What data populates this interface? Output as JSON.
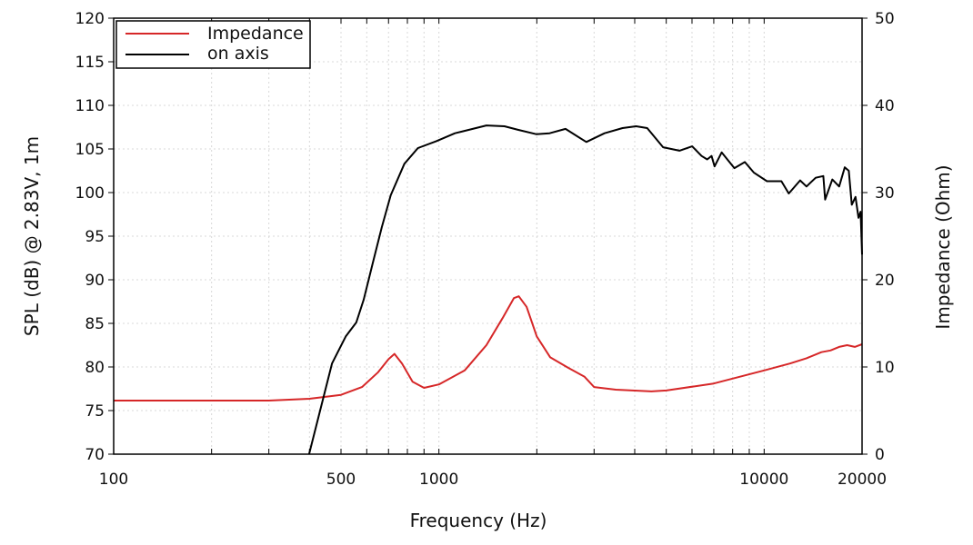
{
  "chart_data": {
    "type": "line",
    "title": "",
    "xlabel": "Frequency (Hz)",
    "ylabel": "SPL (dB) @ 2.83V, 1m",
    "y2label": "Impedance (Ohm)",
    "xscale": "log",
    "xlim": [
      100,
      20000
    ],
    "ylim": [
      70,
      120
    ],
    "y2lim": [
      0,
      50
    ],
    "xticks": [
      100,
      500,
      1000,
      10000,
      20000
    ],
    "xtick_labels": [
      "100",
      "500",
      "1000",
      "10000",
      "20000"
    ],
    "yticks": [
      70,
      75,
      80,
      85,
      90,
      95,
      100,
      105,
      110,
      115,
      120
    ],
    "ytick_labels": [
      "70",
      "75",
      "80",
      "85",
      "90",
      "95",
      "100",
      "105",
      "110",
      "115",
      "120"
    ],
    "y2ticks": [
      0,
      10,
      20,
      30,
      40,
      50
    ],
    "y2tick_labels": [
      "0",
      "10",
      "20",
      "30",
      "40",
      "50"
    ],
    "grid": true,
    "legend": {
      "placement": "top-left",
      "entries": [
        "Impedance",
        "on axis"
      ]
    },
    "series": [
      {
        "name": "Impedance",
        "axis": "right",
        "color": "#d62728",
        "x": [
          100,
          300,
          400,
          500,
          580,
          650,
          700,
          730,
          770,
          830,
          900,
          1000,
          1200,
          1400,
          1570,
          1700,
          1760,
          1860,
          2000,
          2200,
          2500,
          2800,
          3000,
          3500,
          4500,
          5000,
          7000,
          10000,
          12000,
          13500,
          15000,
          16000,
          17000,
          18000,
          19000,
          20000
        ],
        "y": [
          6.15,
          6.15,
          6.35,
          6.8,
          7.7,
          9.4,
          10.9,
          11.5,
          10.4,
          8.3,
          7.6,
          8.0,
          9.6,
          12.5,
          15.6,
          17.9,
          18.1,
          16.9,
          13.5,
          11.1,
          9.9,
          8.9,
          7.7,
          7.4,
          7.2,
          7.3,
          8.1,
          9.6,
          10.4,
          11.0,
          11.7,
          11.9,
          12.3,
          12.5,
          12.3,
          12.6
        ]
      },
      {
        "name": "on axis",
        "axis": "left",
        "color": "#000000",
        "x": [
          399,
          469,
          517,
          557,
          587,
          626,
          667,
          711,
          783,
          862,
          982,
          1120,
          1270,
          1400,
          1590,
          1750,
          1990,
          2190,
          2450,
          2840,
          3230,
          3670,
          4040,
          4370,
          4890,
          5490,
          6010,
          6420,
          6680,
          6890,
          7040,
          7400,
          8100,
          8720,
          9290,
          10200,
          11300,
          11900,
          12900,
          13500,
          14400,
          15200,
          15400,
          16200,
          17000,
          17700,
          18200,
          18600,
          19100,
          19500,
          19800,
          20000
        ],
        "y": [
          70,
          80.4,
          83.5,
          85.1,
          87.7,
          91.9,
          96,
          99.7,
          103.3,
          105.1,
          105.9,
          106.8,
          107.3,
          107.7,
          107.6,
          107.2,
          106.7,
          106.8,
          107.3,
          105.8,
          106.8,
          107.4,
          107.6,
          107.4,
          105.2,
          104.8,
          105.3,
          104.2,
          103.8,
          104.2,
          103,
          104.6,
          102.8,
          103.5,
          102.3,
          101.3,
          101.3,
          99.9,
          101.4,
          100.7,
          101.7,
          101.9,
          99.2,
          101.5,
          100.7,
          102.9,
          102.5,
          98.6,
          99.5,
          97.1,
          97.8,
          92.9
        ]
      }
    ]
  }
}
